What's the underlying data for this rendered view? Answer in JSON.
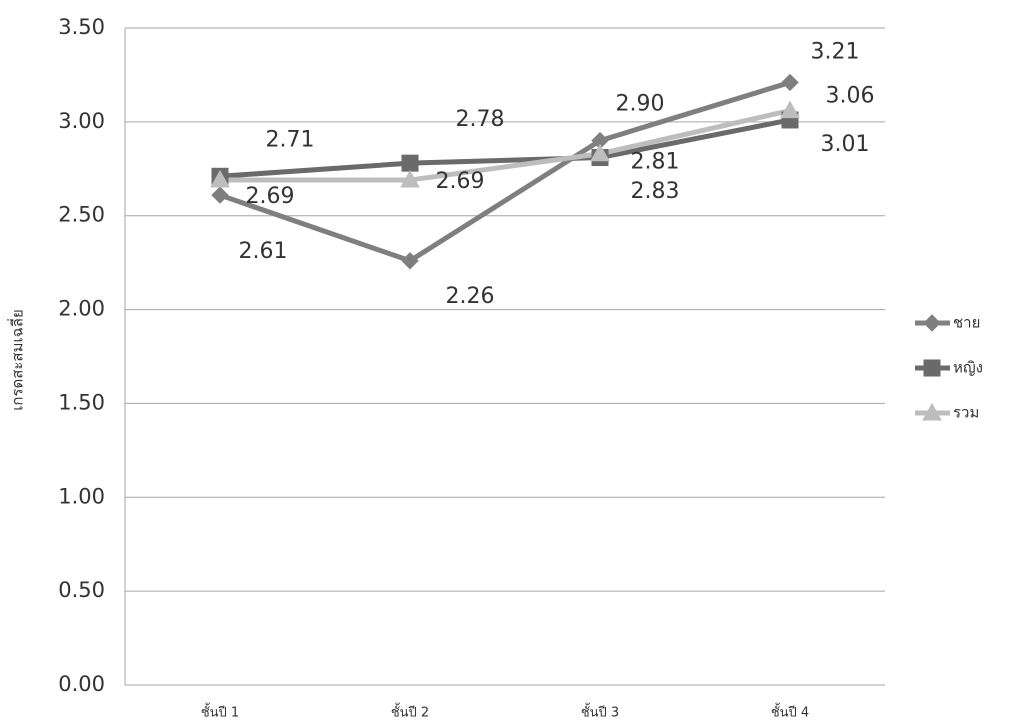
{
  "chart_data": {
    "type": "line",
    "y_label": "เกรดสะสมเฉลี่ย",
    "categories": [
      "ชั้นปี 1",
      "ชั้นปี 2",
      "ชั้นปี 3",
      "ชั้นปี 4"
    ],
    "series": [
      {
        "name": "ชาย",
        "color": "#7f7f7f",
        "marker": "diamond",
        "values": [
          2.61,
          2.26,
          2.9,
          3.21
        ],
        "value_labels": [
          "2.61",
          "2.26",
          "2.90",
          "3.21"
        ]
      },
      {
        "name": "หญิง",
        "color": "#6a6a6a",
        "marker": "square",
        "values": [
          2.71,
          2.78,
          2.81,
          3.01
        ],
        "value_labels": [
          "2.71",
          "2.78",
          "2.81",
          "3.01"
        ]
      },
      {
        "name": "รวม",
        "color": "#bdbdbd",
        "marker": "triangle",
        "values": [
          2.69,
          2.69,
          2.83,
          3.06
        ],
        "value_labels": [
          "2.69",
          "2.69",
          "2.83",
          "3.06"
        ]
      }
    ],
    "ylim": [
      0,
      3.5
    ],
    "yticks": [
      {
        "value": 0,
        "label": "0.00"
      },
      {
        "value": 0.5,
        "label": "0.50"
      },
      {
        "value": 1,
        "label": "1.00"
      },
      {
        "value": 1.5,
        "label": "1.50"
      },
      {
        "value": 2,
        "label": "2.00"
      },
      {
        "value": 2.5,
        "label": "2.50"
      },
      {
        "value": 3,
        "label": "3.00"
      },
      {
        "value": 3.5,
        "label": "3.50"
      }
    ],
    "grid": true,
    "legend": "right"
  }
}
